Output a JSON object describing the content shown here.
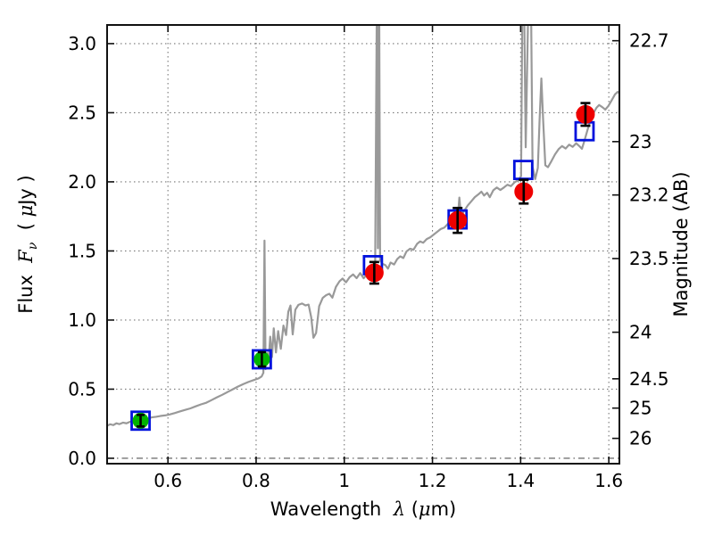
{
  "figure": {
    "background": "#ffffff"
  },
  "chart_data": {
    "type": "line",
    "title": "",
    "xlabel_parts": [
      {
        "t": "Wavelength  ",
        "style": "plain"
      },
      {
        "t": "λ",
        "style": "math"
      },
      {
        "t": " (",
        "style": "plain"
      },
      {
        "t": "μ",
        "style": "math"
      },
      {
        "t": "m)",
        "style": "plain"
      }
    ],
    "ylabel_left_parts": [
      {
        "t": "Flux  ",
        "style": "plain"
      },
      {
        "t": "F",
        "style": "math"
      },
      {
        "t": "ν",
        "style": "mathsub"
      },
      {
        "t": "  ( ",
        "style": "plain"
      },
      {
        "t": "μ",
        "style": "math"
      },
      {
        "t": "Jy )",
        "style": "plain"
      }
    ],
    "ylabel_right": "Magnitude (AB)",
    "axes": {
      "xlim": [
        0.462,
        1.624
      ],
      "ylim": [
        -0.039,
        3.135
      ],
      "grid": "dotted",
      "x_ticks": [
        {
          "label": "0.6",
          "value": 0.6
        },
        {
          "label": "0.8",
          "value": 0.8
        },
        {
          "label": "1",
          "value": 1.0
        },
        {
          "label": "1.2",
          "value": 1.2
        },
        {
          "label": "1.4",
          "value": 1.4
        },
        {
          "label": "1.6",
          "value": 1.6
        }
      ],
      "y_ticks_left": [
        {
          "label": "0.0",
          "value": 0.0
        },
        {
          "label": "0.5",
          "value": 0.5
        },
        {
          "label": "1.0",
          "value": 1.0
        },
        {
          "label": "1.5",
          "value": 1.5
        },
        {
          "label": "2.0",
          "value": 2.0
        },
        {
          "label": "2.5",
          "value": 2.5
        },
        {
          "label": "3.0",
          "value": 3.0
        }
      ],
      "y_ticks_right": [
        {
          "label": "22.7",
          "value": 3.021
        },
        {
          "label": "23",
          "value": 2.291
        },
        {
          "label": "23.2",
          "value": 1.905
        },
        {
          "label": "23.5",
          "value": 1.445
        },
        {
          "label": "24",
          "value": 0.912
        },
        {
          "label": "24.5",
          "value": 0.575
        },
        {
          "label": "25",
          "value": 0.363
        },
        {
          "label": "26",
          "value": 0.144
        }
      ]
    },
    "series": [
      {
        "name": "model-spectrum",
        "type": "line",
        "color": "#999999",
        "points": [
          [
            0.462,
            0.235
          ],
          [
            0.469,
            0.246
          ],
          [
            0.476,
            0.24
          ],
          [
            0.483,
            0.253
          ],
          [
            0.49,
            0.247
          ],
          [
            0.498,
            0.258
          ],
          [
            0.506,
            0.253
          ],
          [
            0.514,
            0.264
          ],
          [
            0.522,
            0.27
          ],
          [
            0.53,
            0.275
          ],
          [
            0.538,
            0.281
          ],
          [
            0.546,
            0.289
          ],
          [
            0.554,
            0.285
          ],
          [
            0.563,
            0.296
          ],
          [
            0.573,
            0.3
          ],
          [
            0.583,
            0.306
          ],
          [
            0.593,
            0.31
          ],
          [
            0.603,
            0.316
          ],
          [
            0.615,
            0.327
          ],
          [
            0.627,
            0.339
          ],
          [
            0.639,
            0.35
          ],
          [
            0.651,
            0.361
          ],
          [
            0.663,
            0.376
          ],
          [
            0.675,
            0.39
          ],
          [
            0.687,
            0.402
          ],
          [
            0.699,
            0.421
          ],
          [
            0.711,
            0.441
          ],
          [
            0.723,
            0.459
          ],
          [
            0.735,
            0.479
          ],
          [
            0.747,
            0.499
          ],
          [
            0.759,
            0.519
          ],
          [
            0.771,
            0.537
          ],
          [
            0.783,
            0.553
          ],
          [
            0.795,
            0.566
          ],
          [
            0.805,
            0.577
          ],
          [
            0.8125,
            0.592
          ],
          [
            0.8165,
            0.618
          ],
          [
            0.819,
            1.575
          ],
          [
            0.8215,
            0.645
          ],
          [
            0.825,
            0.76
          ],
          [
            0.828,
            0.692
          ],
          [
            0.832,
            0.88
          ],
          [
            0.836,
            0.732
          ],
          [
            0.84,
            0.94
          ],
          [
            0.845,
            0.766
          ],
          [
            0.85,
            0.92
          ],
          [
            0.856,
            0.792
          ],
          [
            0.862,
            0.96
          ],
          [
            0.868,
            0.892
          ],
          [
            0.873,
            1.06
          ],
          [
            0.878,
            1.105
          ],
          [
            0.883,
            0.896
          ],
          [
            0.889,
            1.075
          ],
          [
            0.896,
            1.11
          ],
          [
            0.904,
            1.12
          ],
          [
            0.912,
            1.106
          ],
          [
            0.919,
            1.112
          ],
          [
            0.925,
            1.02
          ],
          [
            0.93,
            0.872
          ],
          [
            0.936,
            0.906
          ],
          [
            0.943,
            1.1
          ],
          [
            0.951,
            1.16
          ],
          [
            0.959,
            1.18
          ],
          [
            0.966,
            1.19
          ],
          [
            0.973,
            1.162
          ],
          [
            0.981,
            1.24
          ],
          [
            0.989,
            1.28
          ],
          [
            0.996,
            1.3
          ],
          [
            1.004,
            1.273
          ],
          [
            1.012,
            1.31
          ],
          [
            1.02,
            1.33
          ],
          [
            1.028,
            1.303
          ],
          [
            1.036,
            1.34
          ],
          [
            1.044,
            1.302
          ],
          [
            1.051,
            1.331
          ],
          [
            1.058,
            1.356
          ],
          [
            1.064,
            1.346
          ],
          [
            1.07,
            1.372
          ],
          [
            1.0742,
            3.5
          ],
          [
            1.0762,
            1.52
          ],
          [
            1.079,
            3.5
          ],
          [
            1.0812,
            1.43
          ],
          [
            1.087,
            1.406
          ],
          [
            1.093,
            1.398
          ],
          [
            1.099,
            1.372
          ],
          [
            1.105,
            1.416
          ],
          [
            1.113,
            1.402
          ],
          [
            1.12,
            1.441
          ],
          [
            1.127,
            1.461
          ],
          [
            1.134,
            1.449
          ],
          [
            1.141,
            1.496
          ],
          [
            1.149,
            1.516
          ],
          [
            1.157,
            1.509
          ],
          [
            1.165,
            1.551
          ],
          [
            1.172,
            1.569
          ],
          [
            1.179,
            1.559
          ],
          [
            1.187,
            1.586
          ],
          [
            1.195,
            1.599
          ],
          [
            1.203,
            1.619
          ],
          [
            1.211,
            1.639
          ],
          [
            1.219,
            1.659
          ],
          [
            1.227,
            1.669
          ],
          [
            1.235,
            1.696
          ],
          [
            1.243,
            1.716
          ],
          [
            1.251,
            1.729
          ],
          [
            1.2575,
            1.743
          ],
          [
            1.261,
            1.886
          ],
          [
            1.2645,
            1.756
          ],
          [
            1.272,
            1.791
          ],
          [
            1.28,
            1.829
          ],
          [
            1.288,
            1.859
          ],
          [
            1.296,
            1.889
          ],
          [
            1.304,
            1.909
          ],
          [
            1.311,
            1.929
          ],
          [
            1.317,
            1.901
          ],
          [
            1.324,
            1.921
          ],
          [
            1.33,
            1.889
          ],
          [
            1.338,
            1.939
          ],
          [
            1.346,
            1.959
          ],
          [
            1.354,
            1.941
          ],
          [
            1.362,
            1.959
          ],
          [
            1.37,
            1.979
          ],
          [
            1.378,
            1.969
          ],
          [
            1.386,
            1.996
          ],
          [
            1.394,
            2.011
          ],
          [
            1.401,
            2.041
          ],
          [
            1.4055,
            4.0
          ],
          [
            1.4115,
            2.25
          ],
          [
            1.4215,
            4.0
          ],
          [
            1.427,
            2.11
          ],
          [
            1.433,
            2.02
          ],
          [
            1.439,
            2.1
          ],
          [
            1.443,
            2.45
          ],
          [
            1.447,
            2.748
          ],
          [
            1.451,
            2.45
          ],
          [
            1.456,
            2.12
          ],
          [
            1.462,
            2.106
          ],
          [
            1.47,
            2.151
          ],
          [
            1.478,
            2.199
          ],
          [
            1.486,
            2.236
          ],
          [
            1.494,
            2.259
          ],
          [
            1.502,
            2.241
          ],
          [
            1.51,
            2.269
          ],
          [
            1.518,
            2.253
          ],
          [
            1.526,
            2.279
          ],
          [
            1.533,
            2.259
          ],
          [
            1.539,
            2.239
          ],
          [
            1.545,
            2.301
          ],
          [
            1.552,
            2.379
          ],
          [
            1.558,
            2.441
          ],
          [
            1.565,
            2.496
          ],
          [
            1.572,
            2.536
          ],
          [
            1.578,
            2.556
          ],
          [
            1.585,
            2.541
          ],
          [
            1.592,
            2.523
          ],
          [
            1.599,
            2.549
          ],
          [
            1.607,
            2.593
          ],
          [
            1.614,
            2.633
          ],
          [
            1.62,
            2.651
          ],
          [
            1.624,
            2.641
          ]
        ]
      },
      {
        "name": "photometry-squares",
        "type": "scatter",
        "marker": "open-square",
        "color": "#0011dd",
        "points": [
          {
            "x": 0.538,
            "y": 0.272
          },
          {
            "x": 0.813,
            "y": 0.716
          },
          {
            "x": 1.065,
            "y": 1.397
          },
          {
            "x": 1.257,
            "y": 1.728
          },
          {
            "x": 1.406,
            "y": 2.086
          },
          {
            "x": 1.545,
            "y": 2.366
          }
        ]
      },
      {
        "name": "photometry-green-circles",
        "type": "scatter",
        "marker": "filled-circle",
        "color": "#00b400",
        "points": [
          {
            "x": 0.538,
            "y": 0.272,
            "yerr": 0.042
          },
          {
            "x": 0.813,
            "y": 0.716,
            "yerr": 0.052
          }
        ]
      },
      {
        "name": "photometry-red-circles",
        "type": "scatter",
        "marker": "filled-circle",
        "color": "#ee0000",
        "points": [
          {
            "x": 1.068,
            "y": 1.342,
            "yerr": 0.078
          },
          {
            "x": 1.257,
            "y": 1.721,
            "yerr": 0.09
          },
          {
            "x": 1.407,
            "y": 1.929,
            "yerr": 0.086
          },
          {
            "x": 1.547,
            "y": 2.488,
            "yerr": 0.082
          }
        ]
      }
    ]
  }
}
